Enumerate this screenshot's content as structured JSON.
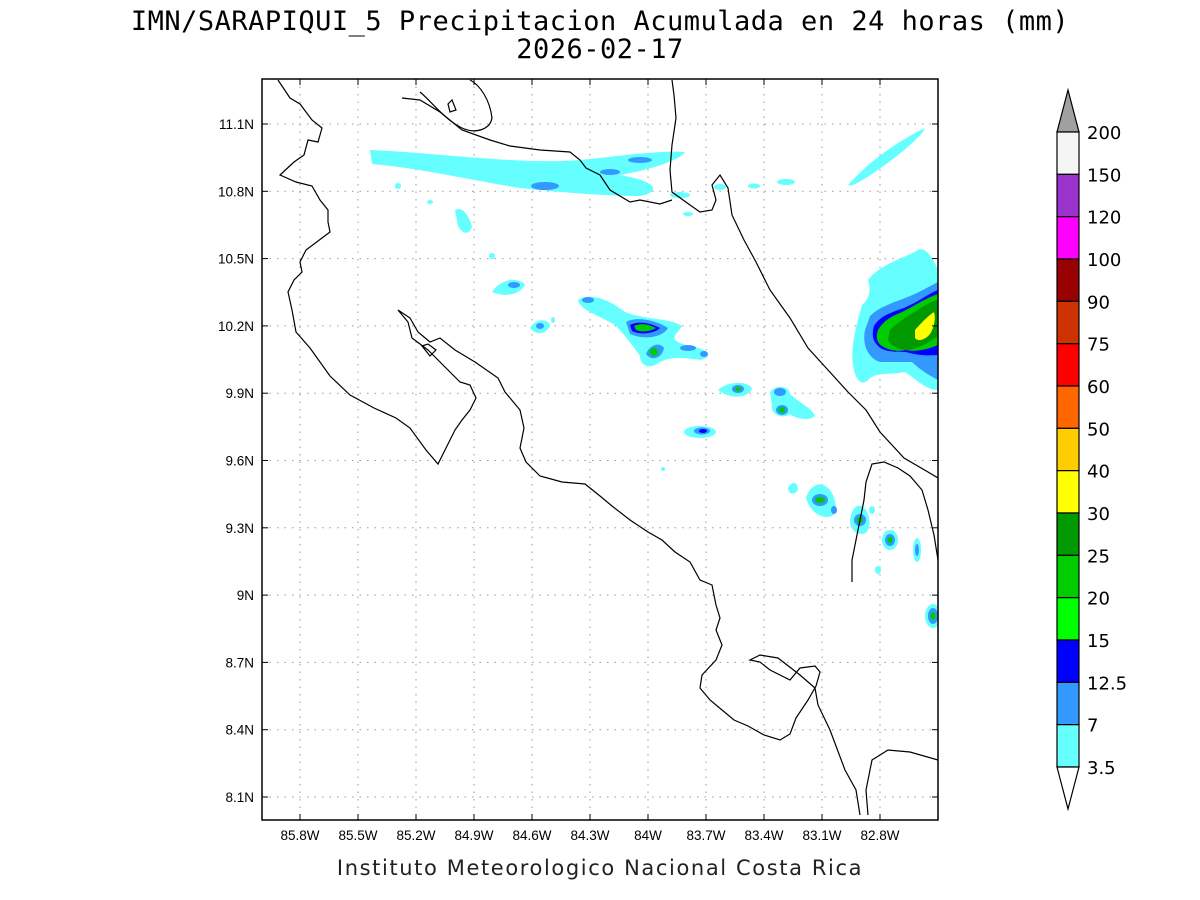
{
  "title_line1": "IMN/SARAPIQUI_5 Precipitacion Acumulada en 24 horas (mm)",
  "title_line2": "2026-02-17",
  "footer": "Instituto Meteorologico Nacional Costa Rica",
  "lon_labels": [
    "85.8W",
    "85.5W",
    "85.2W",
    "84.9W",
    "84.6W",
    "84.3W",
    "84W",
    "83.7W",
    "83.4W",
    "83.1W",
    "82.8W"
  ],
  "lat_labels": [
    "11.1N",
    "10.8N",
    "10.5N",
    "10.2N",
    "9.9N",
    "9.6N",
    "9.3N",
    "9N",
    "8.7N",
    "8.4N",
    "8.1N"
  ],
  "colorbar": {
    "labels": [
      "200",
      "150",
      "120",
      "100",
      "90",
      "75",
      "60",
      "50",
      "40",
      "30",
      "25",
      "20",
      "15",
      "12.5",
      "7",
      "3.5"
    ],
    "colors": [
      "#a0a0a0",
      "#f5f5f5",
      "#9933cc",
      "#ff00ff",
      "#990000",
      "#cc3300",
      "#ff0000",
      "#ff6600",
      "#ffcc00",
      "#ffff00",
      "#009900",
      "#00cc00",
      "#00ff00",
      "#0000ff",
      "#3399ff",
      "#66ffff",
      "#ffffff"
    ]
  }
}
